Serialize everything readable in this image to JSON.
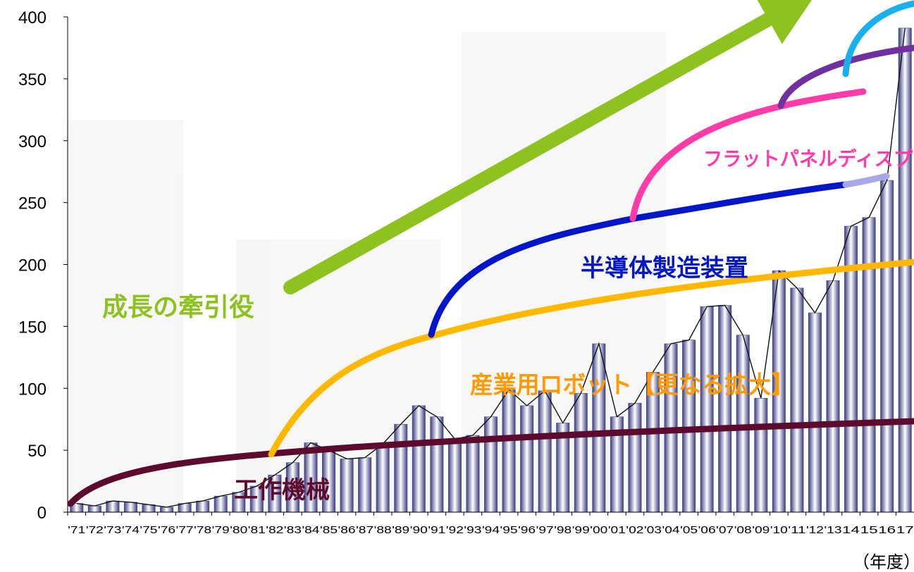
{
  "chart_data": {
    "type": "bar",
    "unit_label": "（年度）",
    "ylim": [
      0,
      400
    ],
    "y_ticks": [
      0,
      50,
      100,
      150,
      200,
      250,
      300,
      350,
      400
    ],
    "categories": [
      "'71",
      "'72",
      "'73",
      "'74",
      "'75",
      "'76",
      "'77",
      "'78",
      "'79",
      "'80",
      "'81",
      "'82",
      "'83",
      "'84",
      "'85",
      "'86",
      "'87",
      "'88",
      "'89",
      "'90",
      "'91",
      "'92",
      "'93",
      "'94",
      "'95",
      "'96",
      "'97",
      "'98",
      "'99",
      "'00",
      "'01",
      "'02",
      "'03",
      "'04",
      "'05",
      "'06",
      "'07",
      "'08",
      "'09",
      "'10",
      "'11",
      "'12",
      "'13",
      "14",
      "15",
      "16",
      "17"
    ],
    "values": [
      7,
      5,
      9,
      8,
      6,
      4,
      7,
      9,
      13,
      16,
      21,
      30,
      40,
      56,
      50,
      43,
      44,
      55,
      71,
      86,
      77,
      59,
      62,
      77,
      99,
      86,
      98,
      72,
      96,
      136,
      77,
      88,
      113,
      136,
      139,
      166,
      167,
      143,
      92,
      195,
      181,
      161,
      187,
      231,
      238,
      268,
      391
    ],
    "bar_color": "#4b4b8f",
    "annotations": [
      {
        "text": "成長の牽引役",
        "color": "#8dc21f"
      },
      {
        "text": "半導体製造装置",
        "color": "#0016c8"
      },
      {
        "text": "フラットパネルディスプ",
        "color": "#ff3ba8"
      },
      {
        "text": "産業用ロボット【更なる拡大】",
        "color": "#ff9a00"
      },
      {
        "text": "工作機械",
        "color": "#5c0a2e"
      }
    ],
    "curve_colors": {
      "growth_arrow": "#8dc21f",
      "machine_tools": "#5c0a2e",
      "industrial_robots": "#ffb800",
      "semiconductor": "#0016c8",
      "semiconductor_ext": "#a8a8e8",
      "flat_panel": "#ff3ba8",
      "purple": "#7030a0",
      "cyan": "#1ab0ee"
    }
  }
}
